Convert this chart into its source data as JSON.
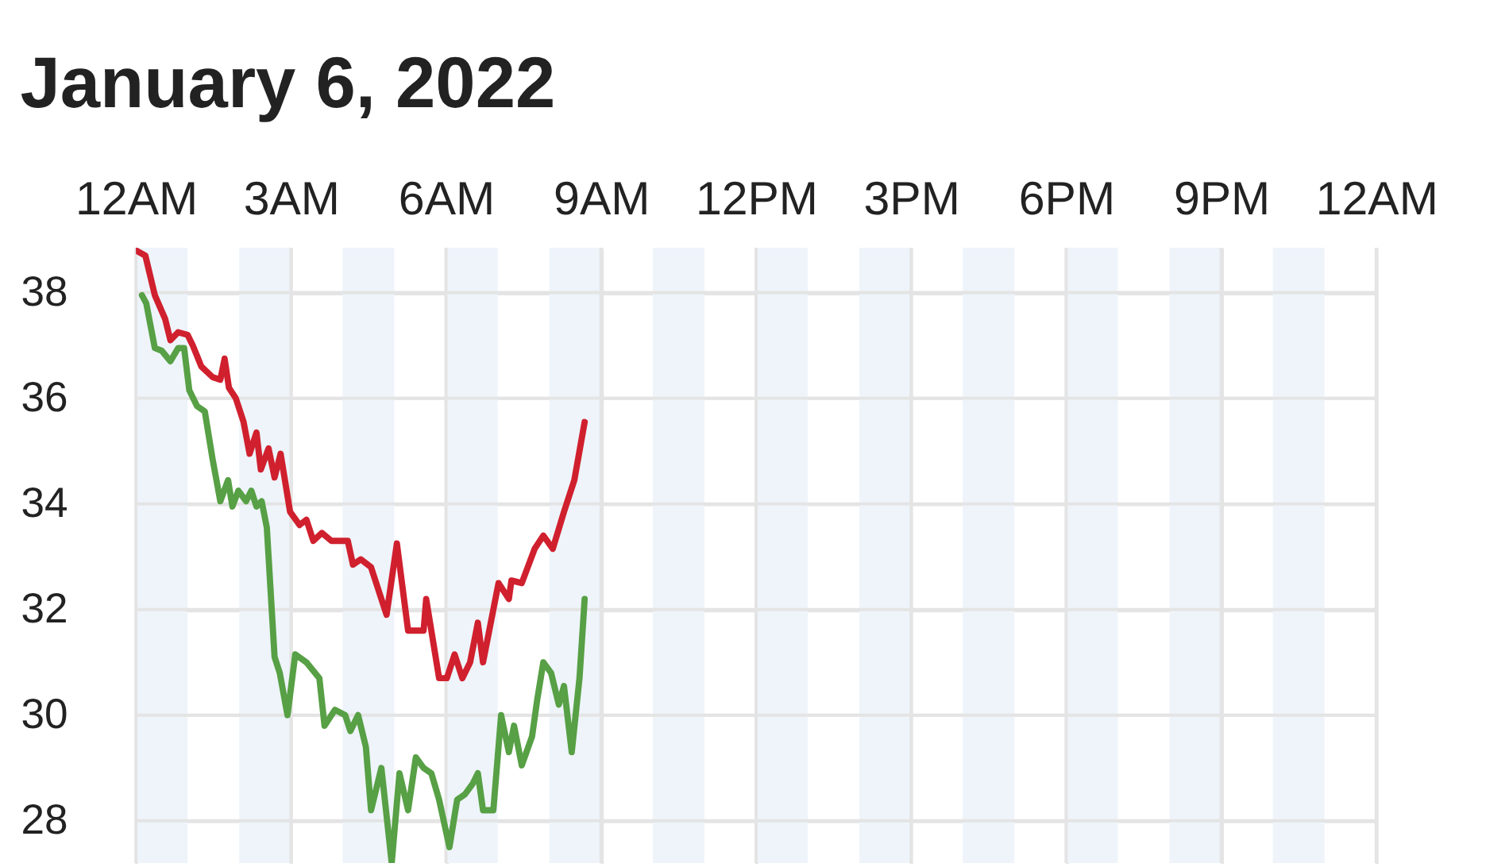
{
  "chart_data": {
    "type": "line",
    "title": "January 6, 2022",
    "xlim": [
      "2022-01-06T00:00",
      "2022-01-07T00:00"
    ],
    "ylim": [
      27.2,
      38.85
    ],
    "xticks": [
      {
        "value": "2022-01-06T00:00",
        "label": "12AM"
      },
      {
        "value": "2022-01-06T03:00",
        "label": "3AM"
      },
      {
        "value": "2022-01-06T06:00",
        "label": "6AM"
      },
      {
        "value": "2022-01-06T09:00",
        "label": "9AM"
      },
      {
        "value": "2022-01-06T12:00",
        "label": "12PM"
      },
      {
        "value": "2022-01-06T15:00",
        "label": "3PM"
      },
      {
        "value": "2022-01-06T18:00",
        "label": "6PM"
      },
      {
        "value": "2022-01-06T21:00",
        "label": "9PM"
      },
      {
        "value": "2022-01-07T00:00",
        "label": "12AM"
      }
    ],
    "yticks": [
      28,
      30,
      32,
      34,
      36,
      38
    ],
    "grid": true,
    "marker": "none",
    "line_style": "solid",
    "bands": [
      {
        "axis": "x",
        "from": "2022-01-06T00:00",
        "to": "2022-01-06T01:00",
        "color": "#eef4fa"
      },
      {
        "axis": "x",
        "from": "2022-01-06T02:00",
        "to": "2022-01-06T03:00",
        "color": "#eef4fa"
      },
      {
        "axis": "x",
        "from": "2022-01-06T04:00",
        "to": "2022-01-06T05:00",
        "color": "#eef4fa"
      },
      {
        "axis": "x",
        "from": "2022-01-06T06:00",
        "to": "2022-01-06T07:00",
        "color": "#eef4fa"
      },
      {
        "axis": "x",
        "from": "2022-01-06T08:00",
        "to": "2022-01-06T09:00",
        "color": "#eef4fa"
      },
      {
        "axis": "x",
        "from": "2022-01-06T10:00",
        "to": "2022-01-06T11:00",
        "color": "#eef4fa"
      },
      {
        "axis": "x",
        "from": "2022-01-06T12:00",
        "to": "2022-01-06T13:00",
        "color": "#eef4fa"
      },
      {
        "axis": "x",
        "from": "2022-01-06T14:00",
        "to": "2022-01-06T15:00",
        "color": "#eef4fa"
      },
      {
        "axis": "x",
        "from": "2022-01-06T16:00",
        "to": "2022-01-06T17:00",
        "color": "#eef4fa"
      },
      {
        "axis": "x",
        "from": "2022-01-06T18:00",
        "to": "2022-01-06T19:00",
        "color": "#eef4fa"
      },
      {
        "axis": "x",
        "from": "2022-01-06T20:00",
        "to": "2022-01-06T21:00",
        "color": "#eef4fa"
      },
      {
        "axis": "x",
        "from": "2022-01-06T22:00",
        "to": "2022-01-06T23:00",
        "color": "#eef4fa"
      }
    ],
    "series": [
      {
        "color": "#d0202e",
        "x": [
          "2022-01-06T00:00",
          "2022-01-06T00:11",
          "2022-01-06T00:22",
          "2022-01-06T00:34",
          "2022-01-06T00:40",
          "2022-01-06T00:49",
          "2022-01-06T01:00",
          "2022-01-06T01:06",
          "2022-01-06T01:16",
          "2022-01-06T01:29",
          "2022-01-06T01:38",
          "2022-01-06T01:43",
          "2022-01-06T01:48",
          "2022-01-06T01:56",
          "2022-01-06T02:05",
          "2022-01-06T02:12",
          "2022-01-06T02:20",
          "2022-01-06T02:25",
          "2022-01-06T02:34",
          "2022-01-06T02:41",
          "2022-01-06T02:48",
          "2022-01-06T02:59",
          "2022-01-06T03:10",
          "2022-01-06T03:18",
          "2022-01-06T03:26",
          "2022-01-06T03:36",
          "2022-01-06T03:47",
          "2022-01-06T04:06",
          "2022-01-06T04:12",
          "2022-01-06T04:21",
          "2022-01-06T04:33",
          "2022-01-06T04:51",
          "2022-01-06T05:03",
          "2022-01-06T05:16",
          "2022-01-06T05:34",
          "2022-01-06T05:37",
          "2022-01-06T05:52",
          "2022-01-06T06:01",
          "2022-01-06T06:10",
          "2022-01-06T06:19",
          "2022-01-06T06:28",
          "2022-01-06T06:37",
          "2022-01-06T06:43",
          "2022-01-06T07:01",
          "2022-01-06T07:13",
          "2022-01-06T07:16",
          "2022-01-06T07:28",
          "2022-01-06T07:43",
          "2022-01-06T07:53",
          "2022-01-06T08:04",
          "2022-01-06T08:17",
          "2022-01-06T08:29",
          "2022-01-06T08:41"
        ],
        "values": [
          38.8,
          38.7,
          37.95,
          37.5,
          37.1,
          37.25,
          37.2,
          37.0,
          36.6,
          36.4,
          36.35,
          36.75,
          36.2,
          36.0,
          35.55,
          34.95,
          35.35,
          34.65,
          35.05,
          34.5,
          34.95,
          33.85,
          33.6,
          33.7,
          33.3,
          33.45,
          33.3,
          33.3,
          32.85,
          32.95,
          32.8,
          31.9,
          33.25,
          31.6,
          31.6,
          32.2,
          30.7,
          30.7,
          31.15,
          30.7,
          31.0,
          31.75,
          31.0,
          32.5,
          32.2,
          32.55,
          32.5,
          33.15,
          33.4,
          33.15,
          33.85,
          34.45,
          35.55
        ]
      },
      {
        "color": "#57a045",
        "x": [
          "2022-01-06T00:07",
          "2022-01-06T00:12",
          "2022-01-06T00:22",
          "2022-01-06T00:30",
          "2022-01-06T00:40",
          "2022-01-06T00:49",
          "2022-01-06T00:56",
          "2022-01-06T01:02",
          "2022-01-06T01:11",
          "2022-01-06T01:20",
          "2022-01-06T01:29",
          "2022-01-06T01:38",
          "2022-01-06T01:47",
          "2022-01-06T01:52",
          "2022-01-06T01:59",
          "2022-01-06T02:08",
          "2022-01-06T02:14",
          "2022-01-06T02:20",
          "2022-01-06T02:26",
          "2022-01-06T02:32",
          "2022-01-06T02:41",
          "2022-01-06T02:47",
          "2022-01-06T02:56",
          "2022-01-06T03:05",
          "2022-01-06T03:18",
          "2022-01-06T03:33",
          "2022-01-06T03:39",
          "2022-01-06T03:51",
          "2022-01-06T04:03",
          "2022-01-06T04:09",
          "2022-01-06T04:18",
          "2022-01-06T04:27",
          "2022-01-06T04:33",
          "2022-01-06T04:45",
          "2022-01-06T04:57",
          "2022-01-06T05:06",
          "2022-01-06T05:16",
          "2022-01-06T05:25",
          "2022-01-06T05:34",
          "2022-01-06T05:43",
          "2022-01-06T05:52",
          "2022-01-06T06:04",
          "2022-01-06T06:13",
          "2022-01-06T06:22",
          "2022-01-06T06:31",
          "2022-01-06T06:37",
          "2022-01-06T06:43",
          "2022-01-06T06:55",
          "2022-01-06T07:04",
          "2022-01-06T07:13",
          "2022-01-06T07:19",
          "2022-01-06T07:28",
          "2022-01-06T07:40",
          "2022-01-06T07:46",
          "2022-01-06T07:53",
          "2022-01-06T08:02",
          "2022-01-06T08:11",
          "2022-01-06T08:17",
          "2022-01-06T08:26",
          "2022-01-06T08:35",
          "2022-01-06T08:41"
        ],
        "values": [
          37.95,
          37.8,
          36.95,
          36.9,
          36.7,
          36.95,
          36.95,
          36.15,
          35.85,
          35.75,
          34.85,
          34.05,
          34.45,
          33.95,
          34.25,
          34.05,
          34.25,
          33.95,
          34.05,
          33.55,
          31.1,
          30.8,
          30.0,
          31.15,
          31.0,
          30.7,
          29.8,
          30.1,
          30.0,
          29.7,
          30.0,
          29.4,
          28.2,
          29.0,
          27.2,
          28.9,
          28.2,
          29.2,
          29.0,
          28.9,
          28.4,
          27.5,
          28.4,
          28.5,
          28.7,
          28.9,
          28.2,
          28.2,
          30.0,
          29.3,
          29.8,
          29.05,
          29.6,
          30.3,
          31.0,
          30.8,
          30.2,
          30.55,
          29.3,
          30.7,
          32.2
        ]
      }
    ]
  }
}
